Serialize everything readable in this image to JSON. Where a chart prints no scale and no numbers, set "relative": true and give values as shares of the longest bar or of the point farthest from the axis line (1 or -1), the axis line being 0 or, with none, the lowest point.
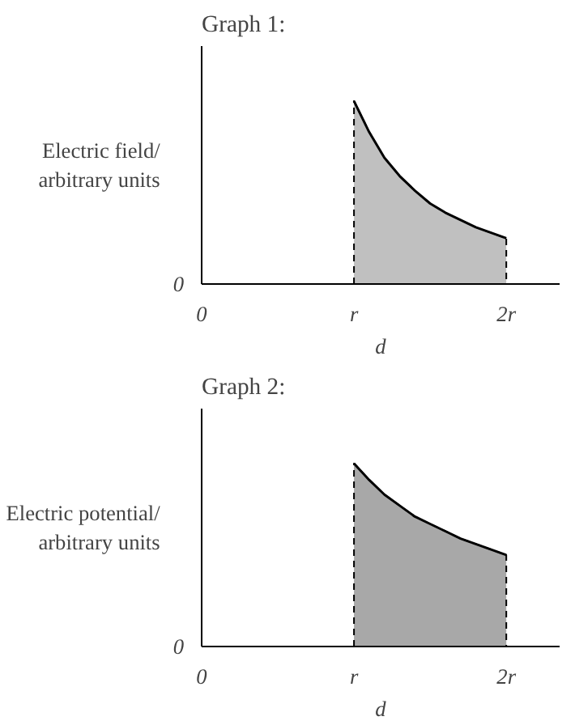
{
  "chart_data": [
    {
      "type": "area",
      "title": "Graph 1:",
      "ylabel": "Electric field/\narbitrary units",
      "xlabel": "d",
      "relative": true,
      "x": [
        1,
        1.1,
        1.2,
        1.3,
        1.4,
        1.5,
        1.6,
        1.7,
        1.8,
        1.9,
        2
      ],
      "xlim": [
        0,
        2.35
      ],
      "xticks": [
        {
          "value": 0,
          "label": "0"
        },
        {
          "value": 1,
          "label": "r"
        },
        {
          "value": 2,
          "label": "2r"
        }
      ],
      "annotations": [
        "0"
      ],
      "grid": false,
      "series": [
        {
          "color": "#c0c0c0",
          "values": [
            1,
            0.83,
            0.69,
            0.59,
            0.51,
            0.44,
            0.39,
            0.35,
            0.31,
            0.28,
            0.25
          ]
        }
      ]
    },
    {
      "type": "area",
      "title": "Graph 2:",
      "ylabel": "Electric potential/\narbitrary units",
      "xlabel": "d",
      "relative": true,
      "x": [
        1,
        1.1,
        1.2,
        1.3,
        1.4,
        1.5,
        1.6,
        1.7,
        1.8,
        1.9,
        2
      ],
      "xlim": [
        0,
        2.35
      ],
      "xticks": [
        {
          "value": 0,
          "label": "0"
        },
        {
          "value": 1,
          "label": "r"
        },
        {
          "value": 2,
          "label": "2r"
        }
      ],
      "annotations": [
        "0"
      ],
      "grid": false,
      "series": [
        {
          "color": "#a8a8a8",
          "values": [
            1,
            0.91,
            0.83,
            0.77,
            0.71,
            0.67,
            0.63,
            0.59,
            0.56,
            0.53,
            0.5
          ]
        }
      ]
    }
  ]
}
